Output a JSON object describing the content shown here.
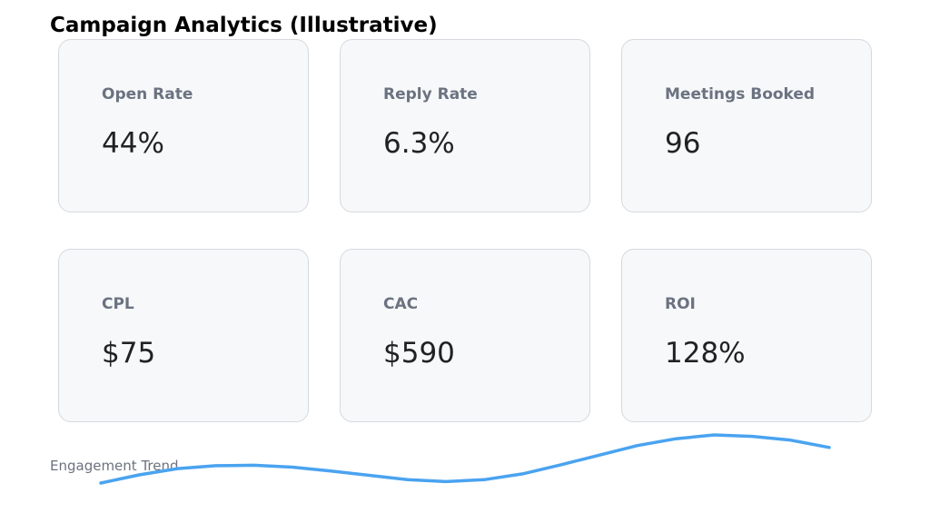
{
  "title": "Campaign Analytics (Illustrative)",
  "cards": [
    {
      "label": "Open Rate",
      "value": "44%"
    },
    {
      "label": "Reply Rate",
      "value": "6.3%"
    },
    {
      "label": "Meetings Booked",
      "value": "96"
    },
    {
      "label": "CPL",
      "value": "$75"
    },
    {
      "label": "CAC",
      "value": "$590"
    },
    {
      "label": "ROI",
      "value": "128%"
    }
  ],
  "trend": {
    "label": "Engagement Trend",
    "color": "#4aa3f0"
  },
  "chart_data": {
    "type": "line",
    "title": "",
    "xlabel": "",
    "ylabel": "",
    "x": [
      0,
      1,
      2,
      3,
      4,
      5,
      6,
      7,
      8,
      9,
      10,
      11,
      12,
      13,
      14,
      15,
      16,
      17,
      18,
      19
    ],
    "series": [
      {
        "values": [
          0.0,
          0.17,
          0.3,
          0.36,
          0.37,
          0.33,
          0.25,
          0.16,
          0.07,
          0.03,
          0.07,
          0.19,
          0.38,
          0.58,
          0.78,
          0.92,
          1.0,
          0.97,
          0.89,
          0.74
        ]
      }
    ],
    "ylim": [
      0,
      1
    ],
    "grid": false,
    "legend": "none"
  }
}
